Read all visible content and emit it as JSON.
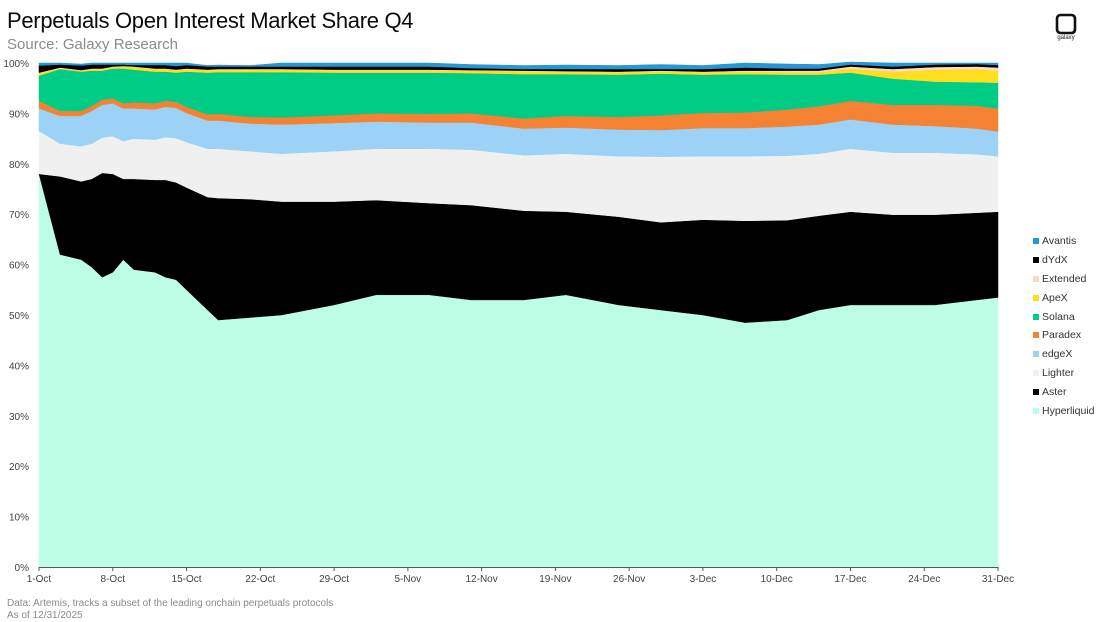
{
  "header": {
    "title": "Perpetuals Open Interest Market Share Q4",
    "subtitle": "Source: Galaxy Research",
    "logo_text": "galaxy"
  },
  "footer": {
    "line1": "Data: Artemis, tracks a subset of the leading onchain perpetuals protocols",
    "line2": "As of 12/31/2025"
  },
  "chart_data": {
    "type": "area",
    "stacked": true,
    "title": "Perpetuals Open Interest Market Share Q4",
    "xlabel": "",
    "ylabel": "",
    "ylim": [
      0,
      100
    ],
    "y_ticks": [
      "0%",
      "10%",
      "20%",
      "30%",
      "40%",
      "50%",
      "60%",
      "70%",
      "80%",
      "90%",
      "100%"
    ],
    "x_tick_labels": [
      "1-Oct",
      "8-Oct",
      "15-Oct",
      "22-Oct",
      "29-Oct",
      "5-Nov",
      "12-Nov",
      "19-Nov",
      "26-Nov",
      "3-Dec",
      "10-Dec",
      "17-Dec",
      "24-Dec",
      "31-Dec"
    ],
    "x_days": [
      1,
      3,
      5,
      6,
      7,
      8,
      9,
      10,
      12,
      13,
      14,
      15,
      17,
      18,
      21,
      24,
      29,
      33,
      38,
      42,
      47,
      51,
      56,
      60,
      64,
      68,
      72,
      75,
      78,
      82,
      86,
      90,
      92
    ],
    "series": [
      {
        "name": "Hyperliquid",
        "color": "#bdfde6",
        "values": [
          78,
          62,
          61,
          59.5,
          57.5,
          58.5,
          61,
          59,
          58.5,
          57.5,
          57,
          55,
          51,
          49,
          49.5,
          50,
          52,
          54,
          54,
          53,
          53,
          54,
          52,
          51,
          50,
          48.5,
          49,
          51,
          52,
          52,
          52,
          53,
          53.5
        ]
      },
      {
        "name": "Aster",
        "color": "#000000",
        "values": [
          0,
          15.5,
          15.5,
          17.5,
          20.7,
          19.5,
          16,
          18,
          18.3,
          19.3,
          19.3,
          20.3,
          22.4,
          24.2,
          23.5,
          22.5,
          20.5,
          18.8,
          18.2,
          18.8,
          17.7,
          16.5,
          17.5,
          17.4,
          18.9,
          20.2,
          19.8,
          18.7,
          18.5,
          17.9,
          17.9,
          17.3,
          17
        ]
      },
      {
        "name": "Lighter",
        "color": "#f0f0f0",
        "values": [
          8.5,
          6.5,
          7,
          7,
          7,
          7.5,
          7.5,
          8,
          8,
          8.5,
          8.8,
          9,
          9.6,
          9.8,
          9.5,
          9.5,
          10,
          10.2,
          10.8,
          11,
          11,
          11.5,
          12,
          13,
          12.6,
          12.8,
          12.8,
          12.3,
          12.5,
          12.3,
          12.3,
          11.6,
          11
        ]
      },
      {
        "name": "edgeX",
        "color": "#9bd2f6",
        "values": [
          4.5,
          5.5,
          6,
          6.5,
          6.5,
          6.5,
          6.5,
          6,
          6,
          6,
          6,
          5.8,
          5.6,
          5.6,
          5.5,
          5.8,
          5.6,
          5.4,
          5.2,
          5.4,
          5.3,
          5.2,
          5.3,
          5.3,
          5.6,
          5.6,
          5.8,
          5.8,
          5.8,
          5.6,
          5.3,
          5.1,
          4.9
        ]
      },
      {
        "name": "Paradex",
        "color": "#f58232",
        "values": [
          1.5,
          1,
          1,
          1,
          1,
          1,
          1,
          1.2,
          1.2,
          1.2,
          1.2,
          1.2,
          1.2,
          1.3,
          1.3,
          1.4,
          1.5,
          1.6,
          1.7,
          1.8,
          2,
          2.3,
          2.5,
          2.9,
          3,
          3.1,
          3.4,
          3.6,
          3.7,
          3.9,
          4.2,
          4.5,
          4.6
        ]
      },
      {
        "name": "Solana",
        "color": "#00cc86",
        "values": [
          5,
          8.3,
          7.8,
          7,
          5.8,
          5.9,
          6.9,
          6.5,
          6.3,
          5.8,
          5.8,
          7,
          8.3,
          8.3,
          8.9,
          9,
          8.5,
          8.1,
          8.2,
          8,
          8.8,
          8.3,
          8.4,
          8.3,
          7.6,
          7.6,
          6.9,
          6.3,
          5.6,
          5.2,
          4.6,
          4.7,
          5.1
        ]
      },
      {
        "name": "ApeX",
        "color": "#ffdd1f",
        "values": [
          0.5,
          0.2,
          0.2,
          0.3,
          0.3,
          0.3,
          0.4,
          0.5,
          0.5,
          0.5,
          0.5,
          0.5,
          0.5,
          0.5,
          0.5,
          0.5,
          0.5,
          0.5,
          0.5,
          0.5,
          0.6,
          0.5,
          0.5,
          0.5,
          0.5,
          0.5,
          0.5,
          0.5,
          0.8,
          1.4,
          2.4,
          2.6,
          2.4
        ]
      },
      {
        "name": "Extended",
        "color": "#ffd9bf",
        "values": [
          0.1,
          0.1,
          0.1,
          0.1,
          0.1,
          0.1,
          0.1,
          0.1,
          0.1,
          0.1,
          0.1,
          0.1,
          0.1,
          0.1,
          0.1,
          0.1,
          0.1,
          0.1,
          0.1,
          0.1,
          0.1,
          0.1,
          0.1,
          0.1,
          0.1,
          0.2,
          0.3,
          0.3,
          0.4,
          0.5,
          0.5,
          0.5,
          0.6
        ]
      },
      {
        "name": "dYdX",
        "color": "#000000",
        "values": [
          1.4,
          0.6,
          0.9,
          0.8,
          0.8,
          0.4,
          0.3,
          0.3,
          0.7,
          0.7,
          0.7,
          0.7,
          0.6,
          0.5,
          0.5,
          0.5,
          0.6,
          0.6,
          0.6,
          0.4,
          0.3,
          0.4,
          0.5,
          0.3,
          0.5,
          0.6,
          0.4,
          0.4,
          0.4,
          0.5,
          0.5,
          0.5,
          0.5
        ]
      },
      {
        "name": "Avantis",
        "color": "#2596d6",
        "values": [
          0.5,
          0.3,
          0.3,
          0.3,
          0.3,
          0.3,
          0.3,
          0.4,
          0.4,
          0.4,
          0.6,
          0.4,
          0.2,
          0.3,
          0.2,
          0.7,
          0.7,
          0.7,
          0.7,
          0.7,
          0.7,
          0.8,
          0.7,
          0.9,
          0.7,
          0.9,
          0.9,
          0.8,
          0.5,
          0.7,
          0.3,
          0.2,
          0.4
        ]
      }
    ],
    "legend_order": [
      "Avantis",
      "dYdX",
      "Extended",
      "ApeX",
      "Solana",
      "Paradex",
      "edgeX",
      "Lighter",
      "Aster",
      "Hyperliquid"
    ],
    "legend_position": "right"
  }
}
